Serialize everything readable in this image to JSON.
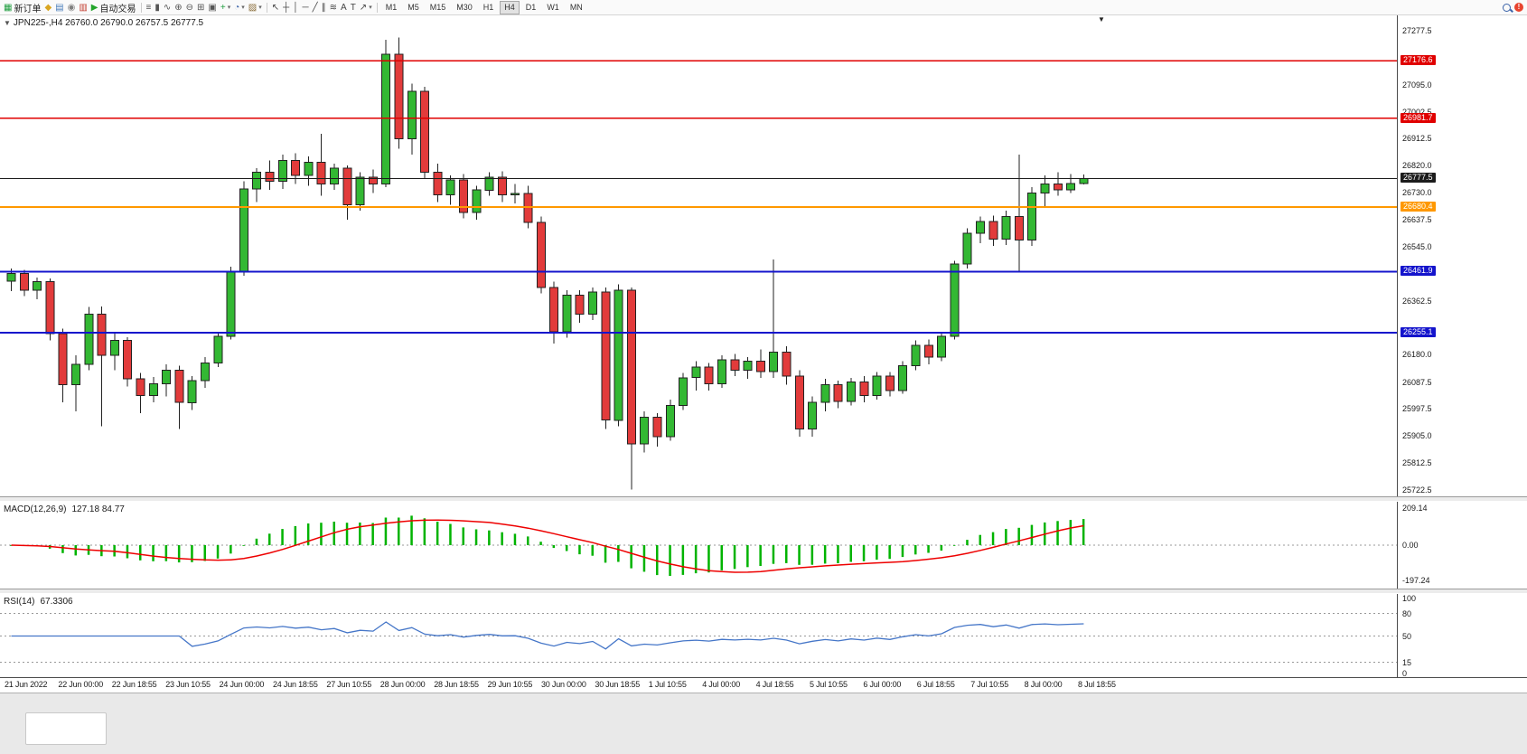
{
  "toolbar": {
    "groups": [
      {
        "items": [
          {
            "name": "new-order-button",
            "glyph": "▦",
            "glyph_color": "#1f9d3f",
            "label": "新订单"
          },
          {
            "name": "chart-profiles-icon",
            "glyph": "◆",
            "glyph_color": "#d9a520"
          },
          {
            "name": "print-preview-icon",
            "glyph": "▤",
            "glyph_color": "#4a7ebb"
          },
          {
            "name": "data-window-icon",
            "glyph": "◉",
            "glyph_color": "#808080"
          },
          {
            "name": "terminal-icon",
            "glyph": "▥",
            "glyph_color": "#c23b2e"
          },
          {
            "name": "autotrading-button",
            "glyph": "▶",
            "glyph_color": "#23a52a",
            "label": "自动交易"
          }
        ]
      },
      {
        "items": [
          {
            "name": "bar-chart-icon",
            "glyph": "≡",
            "glyph_color": "#555555"
          },
          {
            "name": "candlestick-chart-icon",
            "glyph": "▮",
            "glyph_color": "#555555"
          },
          {
            "name": "line-chart-icon",
            "glyph": "∿",
            "glyph_color": "#555555"
          },
          {
            "name": "zoom-in-icon",
            "glyph": "⊕",
            "glyph_color": "#555555"
          },
          {
            "name": "zoom-out-icon",
            "glyph": "⊖",
            "glyph_color": "#555555"
          },
          {
            "name": "tile-windows-icon",
            "glyph": "⊞",
            "glyph_color": "#555555"
          },
          {
            "name": "cascade-windows-icon",
            "glyph": "▣",
            "glyph_color": "#555555"
          },
          {
            "name": "indicators-icon",
            "glyph": "+",
            "glyph_color": "#1f9d3f",
            "dropdown": true
          },
          {
            "name": "periods-icon",
            "glyph": "◔",
            "glyph_color": "#3a62a8",
            "dropdown": true
          },
          {
            "name": "templates-icon",
            "glyph": "▨",
            "glyph_color": "#8a6d3b",
            "dropdown": true
          }
        ]
      },
      {
        "items": [
          {
            "name": "cursor-icon",
            "glyph": "↖",
            "glyph_color": "#444444"
          },
          {
            "name": "crosshair-icon",
            "glyph": "┼",
            "glyph_color": "#444444"
          },
          {
            "name": "vertical-line-icon",
            "glyph": "│",
            "glyph_color": "#444444"
          },
          {
            "name": "horizontal-line-icon",
            "glyph": "─",
            "glyph_color": "#444444"
          },
          {
            "name": "trendline-icon",
            "glyph": "╱",
            "glyph_color": "#444444"
          },
          {
            "name": "equidistant-channel-icon",
            "glyph": "∥",
            "glyph_color": "#444444"
          },
          {
            "name": "fibonacci-icon",
            "glyph": "≋",
            "glyph_color": "#444444"
          },
          {
            "name": "text-icon",
            "glyph": "A",
            "glyph_color": "#444444"
          },
          {
            "name": "text-label-icon",
            "glyph": "T",
            "glyph_color": "#444444"
          },
          {
            "name": "arrows-icon",
            "glyph": "↗",
            "glyph_color": "#444444",
            "dropdown": true
          }
        ]
      }
    ],
    "timeframes": [
      "M1",
      "M5",
      "M15",
      "M30",
      "H1",
      "H4",
      "D1",
      "W1",
      "MN"
    ],
    "active_timeframe": "H4",
    "right_items": [
      {
        "name": "search-icon",
        "css": "magnifier"
      },
      {
        "name": "notification-icon",
        "glyph": "!",
        "glyph_color": "#ffffff",
        "round": true
      }
    ]
  },
  "header": {
    "expander": "▼",
    "symbol_line": "JPN225-,H4 26760.0 26790.0 26757.5 26777.5",
    "shift_marker": "▼"
  },
  "colors": {
    "candle_up": "#33b833",
    "candle_down": "#e23b3b",
    "candle_outline": "#222222",
    "macd_histogram": "#00b300",
    "macd_signal": "#ee0000",
    "rsi_line": "#4576c8",
    "axis_text": "#1a1a1a"
  },
  "chart_data": {
    "type": "candlestick",
    "title": "JPN225-,H4",
    "timeframe": "H4",
    "ohlc_readout": [
      26760.0,
      26790.0,
      26757.5,
      26777.5
    ],
    "y_axis": {
      "range": [
        25700,
        27330
      ],
      "ticks": [
        27277.5,
        27095.0,
        27002.5,
        26912.5,
        26820.0,
        26730.0,
        26637.5,
        26545.0,
        26362.5,
        26180.0,
        26087.5,
        25997.5,
        25905.0,
        25812.5,
        25722.5
      ]
    },
    "horizontal_lines": [
      {
        "price": 27176.6,
        "label": "27176.6",
        "color": "#e00000",
        "width": 1.5
      },
      {
        "price": 26981.7,
        "label": "26981.7",
        "color": "#e00000",
        "width": 1.5
      },
      {
        "price": 26777.5,
        "label": "26777.5",
        "color": "#1c1c1c",
        "width": 1
      },
      {
        "price": 26680.4,
        "label": "26680.4",
        "color": "#ff9800",
        "width": 2
      },
      {
        "price": 26461.9,
        "label": "26461.9",
        "color": "#1414cc",
        "width": 2
      },
      {
        "price": 26255.1,
        "label": "26255.1",
        "color": "#1414cc",
        "width": 2
      }
    ],
    "time_labels": [
      "21 Jun 2022",
      "22 Jun 00:00",
      "22 Jun 18:55",
      "23 Jun 10:55",
      "24 Jun 00:00",
      "24 Jun 18:55",
      "27 Jun 10:55",
      "28 Jun 00:00",
      "28 Jun 18:55",
      "29 Jun 10:55",
      "30 Jun 00:00",
      "30 Jun 18:55",
      "1 Jul 10:55",
      "4 Jul 00:00",
      "4 Jul 18:55",
      "5 Jul 10:55",
      "6 Jul 00:00",
      "6 Jul 18:55",
      "7 Jul 10:55",
      "8 Jul 00:00",
      "8 Jul 18:55"
    ],
    "candles_ohlc": [
      [
        26430,
        26472,
        26395,
        26455
      ],
      [
        26455,
        26468,
        26378,
        26398
      ],
      [
        26398,
        26442,
        26368,
        26428
      ],
      [
        26428,
        26438,
        26228,
        26252
      ],
      [
        26252,
        26268,
        26018,
        26078
      ],
      [
        26078,
        26178,
        25988,
        26148
      ],
      [
        26148,
        26342,
        26128,
        26318
      ],
      [
        26318,
        26344,
        25938,
        26178
      ],
      [
        26178,
        26254,
        26128,
        26228
      ],
      [
        26228,
        26240,
        26072,
        26098
      ],
      [
        26098,
        26118,
        25982,
        26042
      ],
      [
        26042,
        26104,
        26018,
        26082
      ],
      [
        26082,
        26148,
        26038,
        26128
      ],
      [
        26128,
        26142,
        25928,
        26018
      ],
      [
        26018,
        26108,
        25992,
        26092
      ],
      [
        26092,
        26172,
        26068,
        26152
      ],
      [
        26152,
        26258,
        26138,
        26242
      ],
      [
        26242,
        26478,
        26232,
        26462
      ],
      [
        26462,
        26768,
        26448,
        26742
      ],
      [
        26742,
        26812,
        26698,
        26798
      ],
      [
        26798,
        26838,
        26738,
        26768
      ],
      [
        26768,
        26858,
        26742,
        26838
      ],
      [
        26838,
        26862,
        26758,
        26788
      ],
      [
        26788,
        26852,
        26752,
        26832
      ],
      [
        26832,
        26928,
        26718,
        26758
      ],
      [
        26758,
        26828,
        26738,
        26812
      ],
      [
        26812,
        26822,
        26638,
        26688
      ],
      [
        26688,
        26798,
        26668,
        26782
      ],
      [
        26782,
        26808,
        26728,
        26758
      ],
      [
        26758,
        27248,
        26748,
        27198
      ],
      [
        27198,
        27255,
        26878,
        26912
      ],
      [
        26912,
        27098,
        26858,
        27072
      ],
      [
        27072,
        27088,
        26778,
        26798
      ],
      [
        26798,
        26828,
        26698,
        26722
      ],
      [
        26722,
        26788,
        26688,
        26772
      ],
      [
        26772,
        26792,
        26642,
        26662
      ],
      [
        26662,
        26752,
        26638,
        26738
      ],
      [
        26738,
        26798,
        26718,
        26782
      ],
      [
        26782,
        26802,
        26698,
        26722
      ],
      [
        26722,
        26758,
        26692,
        26726
      ],
      [
        26726,
        26752,
        26608,
        26628
      ],
      [
        26628,
        26648,
        26388,
        26408
      ],
      [
        26408,
        26428,
        26218,
        26258
      ],
      [
        26258,
        26398,
        26238,
        26382
      ],
      [
        26382,
        26398,
        26288,
        26318
      ],
      [
        26318,
        26408,
        26298,
        26392
      ],
      [
        26392,
        26408,
        25928,
        25958
      ],
      [
        25958,
        26418,
        25938,
        26398
      ],
      [
        26398,
        26408,
        25722.5,
        25878
      ],
      [
        25878,
        25988,
        25848,
        25968
      ],
      [
        25968,
        25982,
        25868,
        25902
      ],
      [
        25902,
        26028,
        25888,
        26008
      ],
      [
        26008,
        26118,
        25992,
        26102
      ],
      [
        26102,
        26158,
        26058,
        26138
      ],
      [
        26138,
        26152,
        26058,
        26082
      ],
      [
        26082,
        26178,
        26068,
        26162
      ],
      [
        26162,
        26182,
        26108,
        26128
      ],
      [
        26128,
        26172,
        26098,
        26158
      ],
      [
        26158,
        26198,
        26102,
        26122
      ],
      [
        26122,
        26502,
        26102,
        26188
      ],
      [
        26188,
        26208,
        26078,
        26108
      ],
      [
        26108,
        26128,
        25902,
        25928
      ],
      [
        25928,
        26038,
        25902,
        26018
      ],
      [
        26018,
        26098,
        25988,
        26078
      ],
      [
        26078,
        26092,
        25998,
        26022
      ],
      [
        26022,
        26102,
        26008,
        26088
      ],
      [
        26088,
        26108,
        26018,
        26042
      ],
      [
        26042,
        26122,
        26028,
        26108
      ],
      [
        26108,
        26122,
        26038,
        26058
      ],
      [
        26058,
        26158,
        26048,
        26142
      ],
      [
        26142,
        26228,
        26128,
        26212
      ],
      [
        26212,
        26232,
        26148,
        26172
      ],
      [
        26172,
        26258,
        26158,
        26242
      ],
      [
        26242,
        26498,
        26232,
        26488
      ],
      [
        26488,
        26608,
        26472,
        26592
      ],
      [
        26592,
        26648,
        26558,
        26632
      ],
      [
        26632,
        26652,
        26548,
        26572
      ],
      [
        26572,
        26668,
        26552,
        26648
      ],
      [
        26648,
        26858,
        26458,
        26568
      ],
      [
        26568,
        26748,
        26548,
        26728
      ],
      [
        26728,
        26788,
        26678,
        26758
      ],
      [
        26758,
        26798,
        26718,
        26738
      ],
      [
        26738,
        26792,
        26728,
        26760
      ],
      [
        26760,
        26790,
        26757.5,
        26777.5
      ]
    ],
    "indicators": {
      "macd": {
        "name": "MACD(12,26,9)",
        "current": "127.18 84.77",
        "fast": 12,
        "slow": 26,
        "signal": 9,
        "axis_ticks": [
          "209.14",
          "0.00",
          "-197.24"
        ]
      },
      "rsi": {
        "name": "RSI(14)",
        "current": "67.3306",
        "period": 14,
        "axis_ticks": [
          100,
          80,
          50,
          15,
          0
        ],
        "levels": [
          80,
          50,
          15
        ]
      }
    }
  }
}
